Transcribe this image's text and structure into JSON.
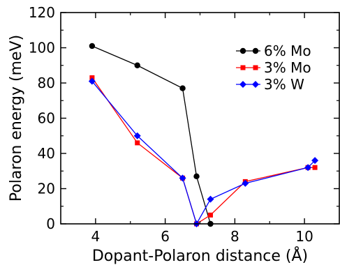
{
  "chart_data": {
    "type": "line",
    "xlabel": "Dopant-Polaron distance (Å)",
    "ylabel": "Polaron energy (meV)",
    "xlim": [
      3.1,
      11.0
    ],
    "ylim": [
      0,
      120
    ],
    "x_ticks": [
      4,
      6,
      8,
      10
    ],
    "y_ticks": [
      0,
      20,
      40,
      60,
      80,
      100,
      120
    ],
    "grid": false,
    "legend_position": "top-right",
    "series": [
      {
        "name": "6% Mo",
        "color": "#000000",
        "marker": "circle",
        "x": [
          3.9,
          5.2,
          6.5,
          6.9,
          7.3
        ],
        "y": [
          101,
          90,
          77,
          27,
          0
        ]
      },
      {
        "name": "3% Mo",
        "color": "#ff0000",
        "marker": "square",
        "x": [
          3.9,
          5.2,
          6.5,
          6.9,
          7.3,
          8.3,
          10.1,
          10.3
        ],
        "y": [
          83,
          46,
          26,
          0,
          5,
          24,
          32,
          32
        ]
      },
      {
        "name": "3% W",
        "color": "#0000ff",
        "marker": "diamond",
        "x": [
          3.9,
          5.2,
          6.5,
          6.9,
          7.3,
          8.3,
          10.1,
          10.3
        ],
        "y": [
          81,
          50,
          26,
          0,
          14,
          23,
          32,
          36
        ]
      }
    ]
  }
}
